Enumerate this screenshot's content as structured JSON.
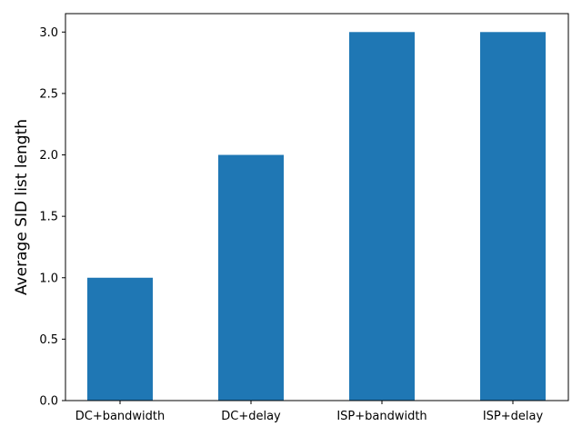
{
  "chart_data": {
    "type": "bar",
    "categories": [
      "DC+bandwidth",
      "DC+delay",
      "ISP+bandwidth",
      "ISP+delay"
    ],
    "values": [
      1.0,
      2.0,
      3.0,
      3.0
    ],
    "title": "",
    "xlabel": "",
    "ylabel": "Average SID list length",
    "ylim": [
      0,
      3.15
    ],
    "yticks": [
      "0.0",
      "0.5",
      "1.0",
      "1.5",
      "2.0",
      "2.5",
      "3.0"
    ],
    "grid": false,
    "bar_color": "#1f77b4"
  }
}
